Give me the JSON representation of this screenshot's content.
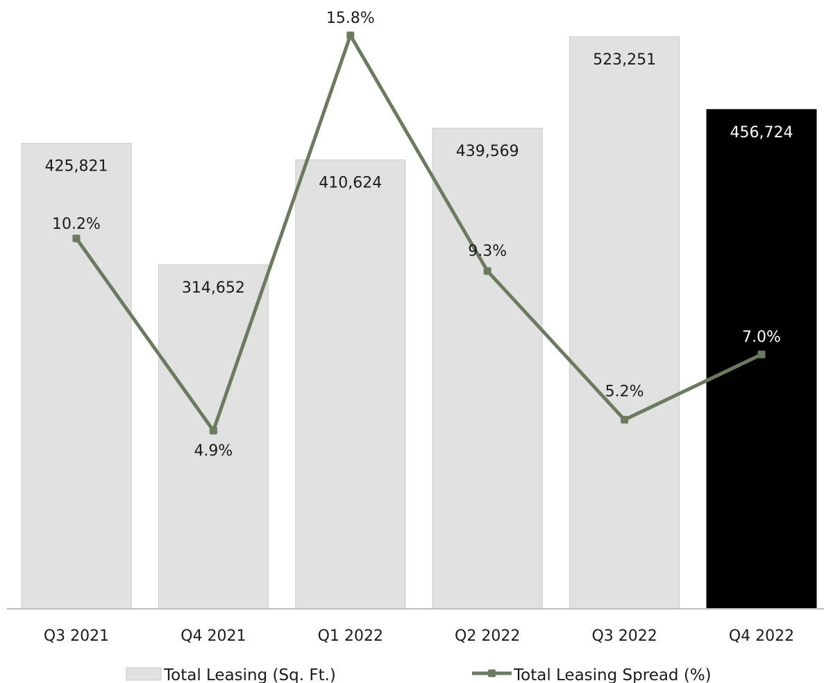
{
  "chart_data": {
    "type": "bar",
    "categories": [
      "Q3 2021",
      "Q4 2021",
      "Q1 2022",
      "Q2 2022",
      "Q3 2022",
      "Q4 2022"
    ],
    "series": [
      {
        "name": "Total Leasing (Sq. Ft.)",
        "type": "bar",
        "values": [
          425821,
          314652,
          410624,
          439569,
          523251,
          456724
        ],
        "labels": [
          "425,821",
          "314,652",
          "410,624",
          "439,569",
          "523,251",
          "456,724"
        ],
        "color": "#e1e1e1",
        "highlight_color": "#000000",
        "highlight_index": 5
      },
      {
        "name": "Total Leasing Spread (%)",
        "type": "line",
        "values": [
          10.2,
          4.9,
          15.8,
          9.3,
          5.2,
          7.0
        ],
        "labels": [
          "10.2%",
          "4.9%",
          "15.8%",
          "9.3%",
          "5.2%",
          "7.0%"
        ],
        "color": "#6b7b5e"
      }
    ],
    "legend": {
      "position": "bottom"
    },
    "grid": false
  }
}
